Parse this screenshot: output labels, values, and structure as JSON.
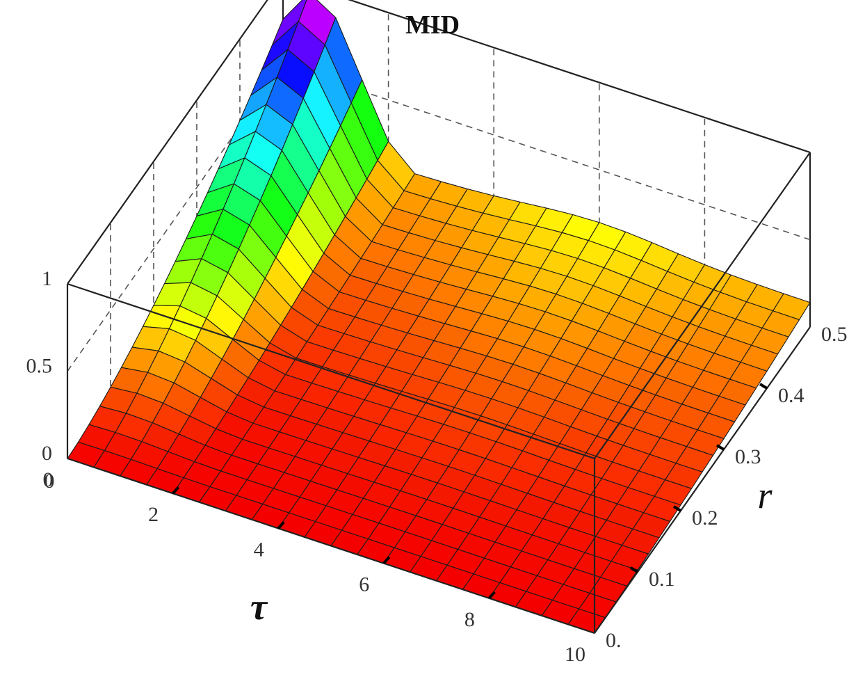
{
  "chart_data": {
    "type": "surface3d",
    "title": "MID",
    "xlabel": "τ",
    "ylabel": "r",
    "zlabel": "",
    "xlim": [
      0,
      10
    ],
    "ylim": [
      0,
      0.5
    ],
    "zlim": [
      0,
      1
    ],
    "x_ticks": [
      "0",
      "2",
      "4",
      "6",
      "8",
      "10"
    ],
    "y_ticks": [
      "0.",
      "0.1",
      "0.2",
      "0.3",
      "0.4",
      "0.5"
    ],
    "z_ticks": [
      "0",
      "0.5",
      "1"
    ],
    "colormap": "hue (red → yellow → green → cyan → blue → magenta → red)",
    "grid": true,
    "mesh": {
      "tau": [
        0,
        0.5,
        1,
        1.5,
        2,
        2.5,
        3,
        3.5,
        4,
        4.5,
        5,
        5.5,
        6,
        6.5,
        7,
        7.5,
        8,
        8.5,
        9,
        9.5,
        10
      ],
      "r": [
        0,
        0.025,
        0.05,
        0.075,
        0.1,
        0.125,
        0.15,
        0.175,
        0.2,
        0.225,
        0.25,
        0.275,
        0.3,
        0.325,
        0.35,
        0.375,
        0.4,
        0.425,
        0.45,
        0.475,
        0.5
      ],
      "description": "MID is ~0 at r = 0, rises with r, peaks (~0.97) near τ ≈ 0.6 at r = 0.5 and decays with τ to a low plateau (~0.1–0.2) with a small bump near τ ≈ 6."
    }
  }
}
